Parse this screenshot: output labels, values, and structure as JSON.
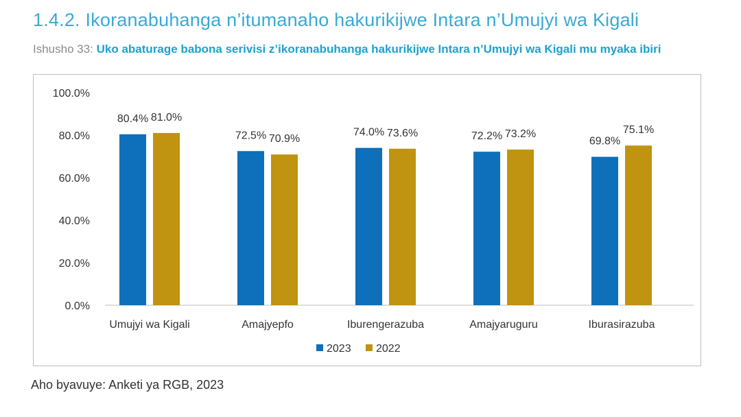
{
  "section": {
    "title": "1.4.2. Ikoranabuhanga n’itumanaho hakurikijwe Intara n’Umujyi wa Kigali"
  },
  "caption": {
    "label": "Ishusho 33: ",
    "text": "Uko abaturage babona serivisi z’ikoranabuhanga hakurikijwe Intara n’Umujyi wa Kigali mu myaka ibiri"
  },
  "source": {
    "text": "Aho byavuye: Anketi ya RGB, 2023"
  },
  "chart_data": {
    "type": "bar",
    "categories": [
      "Umujyi wa Kigali",
      "Amajyepfo",
      "Iburengerazuba",
      "Amajyaruguru",
      "Iburasirazuba"
    ],
    "series": [
      {
        "name": "2023",
        "values": [
          80.4,
          72.5,
          74.0,
          72.2,
          69.8
        ],
        "labels": [
          "80.4%",
          "72.5%",
          "74.0%",
          "72.2%",
          "69.8%"
        ],
        "color": "#0e6fba"
      },
      {
        "name": "2022",
        "values": [
          81.0,
          70.9,
          73.6,
          73.2,
          75.1
        ],
        "labels": [
          "81.0%",
          "70.9%",
          "73.6%",
          "73.2%",
          "75.1%"
        ],
        "color": "#c09310"
      }
    ],
    "yticks": [
      "0.0%",
      "20.0%",
      "40.0%",
      "60.0%",
      "80.0%",
      "100.0%"
    ],
    "ylim": [
      0,
      100
    ],
    "grid": false,
    "legend": "bottom"
  }
}
